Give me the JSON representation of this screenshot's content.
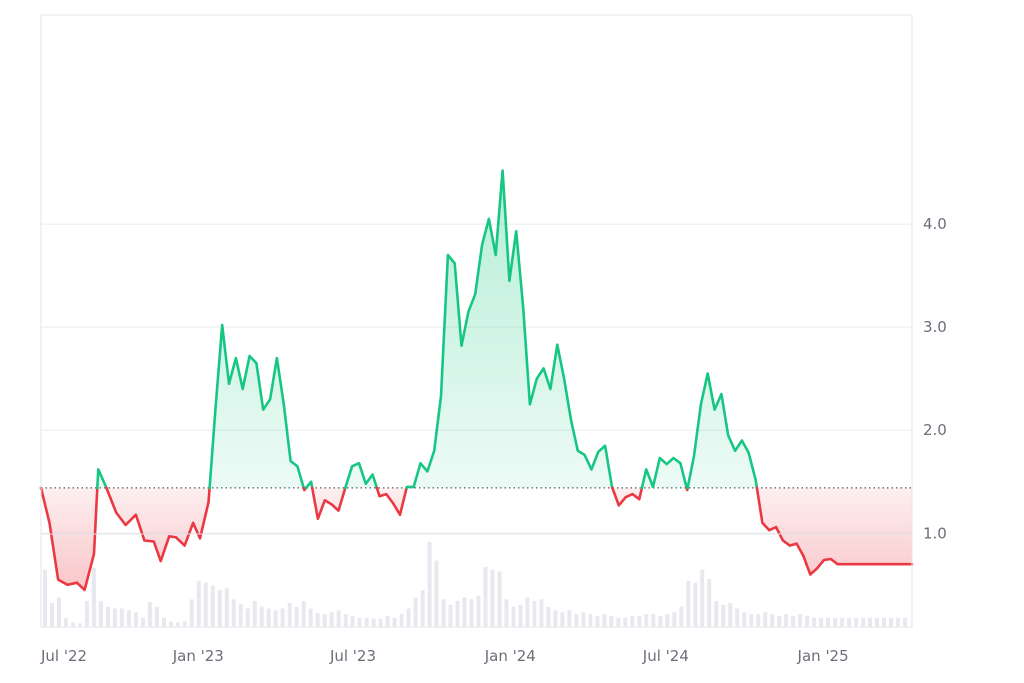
{
  "chart_data": {
    "type": "line",
    "title": "",
    "xlabel": "",
    "ylabel": "",
    "baseline": 1.44,
    "ylim": [
      0,
      5.0
    ],
    "yticks": [
      "1.0",
      "2.0",
      "3.0",
      "4.0"
    ],
    "ytick_values": [
      1.0,
      2.0,
      3.0,
      4.0
    ],
    "xticks": [
      {
        "label": "Jul '22",
        "date": "2022-07-01"
      },
      {
        "label": "Jan '23",
        "date": "2023-01-01"
      },
      {
        "label": "Jul '23",
        "date": "2023-07-01"
      },
      {
        "label": "Jan '24",
        "date": "2024-01-01"
      },
      {
        "label": "Jul '24",
        "date": "2024-07-01"
      },
      {
        "label": "Jan '25",
        "date": "2025-01-01"
      }
    ],
    "x_start": "2022-07-01",
    "x_end": "2025-04-15",
    "grid": true,
    "colors": {
      "above": "#16c784",
      "below": "#ea3943",
      "above_fill": "#16c784",
      "below_fill": "#ea3943"
    },
    "series": [
      {
        "dates": [
          "2022-07-01",
          "2022-07-11",
          "2022-07-21",
          "2022-08-01",
          "2022-08-12",
          "2022-08-21",
          "2022-09-01",
          "2022-09-06",
          "2022-09-15",
          "2022-09-27",
          "2022-10-08",
          "2022-10-20",
          "2022-10-30",
          "2022-11-10",
          "2022-11-18",
          "2022-11-28",
          "2022-12-06",
          "2022-12-16",
          "2022-12-26",
          "2023-01-03",
          "2023-01-13",
          "2023-01-21",
          "2023-01-29",
          "2023-02-06",
          "2023-02-14",
          "2023-02-22",
          "2023-03-02",
          "2023-03-10",
          "2023-03-18",
          "2023-03-26",
          "2023-04-03",
          "2023-04-11",
          "2023-04-19",
          "2023-04-27",
          "2023-05-05",
          "2023-05-13",
          "2023-05-21",
          "2023-05-29",
          "2023-06-06",
          "2023-06-14",
          "2023-06-22",
          "2023-06-30",
          "2023-07-08",
          "2023-07-16",
          "2023-07-24",
          "2023-08-01",
          "2023-08-09",
          "2023-08-17",
          "2023-08-25",
          "2023-09-02",
          "2023-09-10",
          "2023-09-18",
          "2023-09-26",
          "2023-10-04",
          "2023-10-12",
          "2023-10-20",
          "2023-10-28",
          "2023-11-05",
          "2023-11-13",
          "2023-11-21",
          "2023-11-29",
          "2023-12-07",
          "2023-12-15",
          "2023-12-23",
          "2023-12-31",
          "2024-01-08",
          "2024-01-16",
          "2024-01-24",
          "2024-02-01",
          "2024-02-09",
          "2024-02-17",
          "2024-02-25",
          "2024-03-04",
          "2024-03-12",
          "2024-03-20",
          "2024-03-28",
          "2024-04-05",
          "2024-04-13",
          "2024-04-21",
          "2024-04-29",
          "2024-05-07",
          "2024-05-15",
          "2024-05-23",
          "2024-05-31",
          "2024-06-08",
          "2024-06-16",
          "2024-06-24",
          "2024-07-02",
          "2024-07-10",
          "2024-07-18",
          "2024-07-26",
          "2024-08-03",
          "2024-08-11",
          "2024-08-19",
          "2024-08-27",
          "2024-09-04",
          "2024-09-12",
          "2024-09-20",
          "2024-09-28",
          "2024-10-06",
          "2024-10-14",
          "2024-10-22",
          "2024-10-30",
          "2024-11-07",
          "2024-11-15",
          "2024-11-23",
          "2024-12-01",
          "2024-12-09",
          "2024-12-17",
          "2024-12-25",
          "2025-01-02",
          "2025-01-10",
          "2025-01-18",
          "2025-01-26",
          "2025-02-03",
          "2025-02-11",
          "2025-02-19",
          "2025-02-27",
          "2025-03-07",
          "2025-03-15",
          "2025-03-23",
          "2025-03-31",
          "2025-04-08",
          "2025-04-15"
        ],
        "values": [
          1.44,
          1.1,
          0.55,
          0.5,
          0.52,
          0.45,
          0.8,
          1.62,
          1.45,
          1.2,
          1.08,
          1.18,
          0.93,
          0.92,
          0.73,
          0.97,
          0.96,
          0.88,
          1.1,
          0.95,
          1.3,
          2.2,
          3.02,
          2.45,
          2.7,
          2.4,
          2.72,
          2.65,
          2.2,
          2.3,
          2.7,
          2.25,
          1.7,
          1.65,
          1.42,
          1.5,
          1.14,
          1.32,
          1.28,
          1.22,
          1.44,
          1.65,
          1.68,
          1.48,
          1.57,
          1.36,
          1.38,
          1.29,
          1.18,
          1.45,
          1.45,
          1.68,
          1.6,
          1.8,
          2.33,
          3.7,
          3.62,
          2.82,
          3.15,
          3.32,
          3.8,
          4.05,
          3.7,
          4.52,
          3.45,
          3.93,
          3.2,
          2.25,
          2.5,
          2.6,
          2.4,
          2.83,
          2.5,
          2.1,
          1.8,
          1.76,
          1.62,
          1.79,
          1.85,
          1.45,
          1.27,
          1.35,
          1.38,
          1.33,
          1.62,
          1.45,
          1.73,
          1.67,
          1.73,
          1.68,
          1.42,
          1.75,
          2.25,
          2.55,
          2.2,
          2.35,
          1.95,
          1.8,
          1.9,
          1.78,
          1.52,
          1.1,
          1.03,
          1.06,
          0.93,
          0.88,
          0.9,
          0.78,
          0.6,
          0.66,
          0.74,
          0.75,
          0.7,
          0.7,
          0.7,
          0.7,
          0.7,
          0.7,
          0.7,
          0.7,
          0.7,
          0.7,
          0.7,
          0.7
        ]
      }
    ],
    "volume": [
      0.62,
      0.26,
      0.32,
      0.1,
      0.05,
      0.04,
      0.28,
      0.64,
      0.28,
      0.22,
      0.2,
      0.2,
      0.18,
      0.16,
      0.1,
      0.27,
      0.22,
      0.1,
      0.06,
      0.05,
      0.06,
      0.3,
      0.5,
      0.48,
      0.45,
      0.4,
      0.42,
      0.3,
      0.25,
      0.2,
      0.28,
      0.22,
      0.2,
      0.18,
      0.2,
      0.26,
      0.22,
      0.28,
      0.2,
      0.15,
      0.14,
      0.16,
      0.18,
      0.14,
      0.12,
      0.1,
      0.1,
      0.09,
      0.09,
      0.12,
      0.1,
      0.14,
      0.2,
      0.32,
      0.4,
      0.92,
      0.72,
      0.3,
      0.24,
      0.28,
      0.32,
      0.3,
      0.34,
      0.65,
      0.62,
      0.6,
      0.3,
      0.22,
      0.24,
      0.32,
      0.28,
      0.3,
      0.22,
      0.18,
      0.16,
      0.18,
      0.14,
      0.16,
      0.14,
      0.12,
      0.14,
      0.12,
      0.1,
      0.1,
      0.12,
      0.12,
      0.14,
      0.14,
      0.12,
      0.14,
      0.16,
      0.22,
      0.5,
      0.48,
      0.62,
      0.52,
      0.28,
      0.24,
      0.26,
      0.2,
      0.16,
      0.14,
      0.14,
      0.16,
      0.14,
      0.12,
      0.14,
      0.12,
      0.14,
      0.12,
      0.1,
      0.1,
      0.1,
      0.1,
      0.1,
      0.1,
      0.1,
      0.1,
      0.1,
      0.1,
      0.1,
      0.1,
      0.1,
      0.1
    ]
  }
}
